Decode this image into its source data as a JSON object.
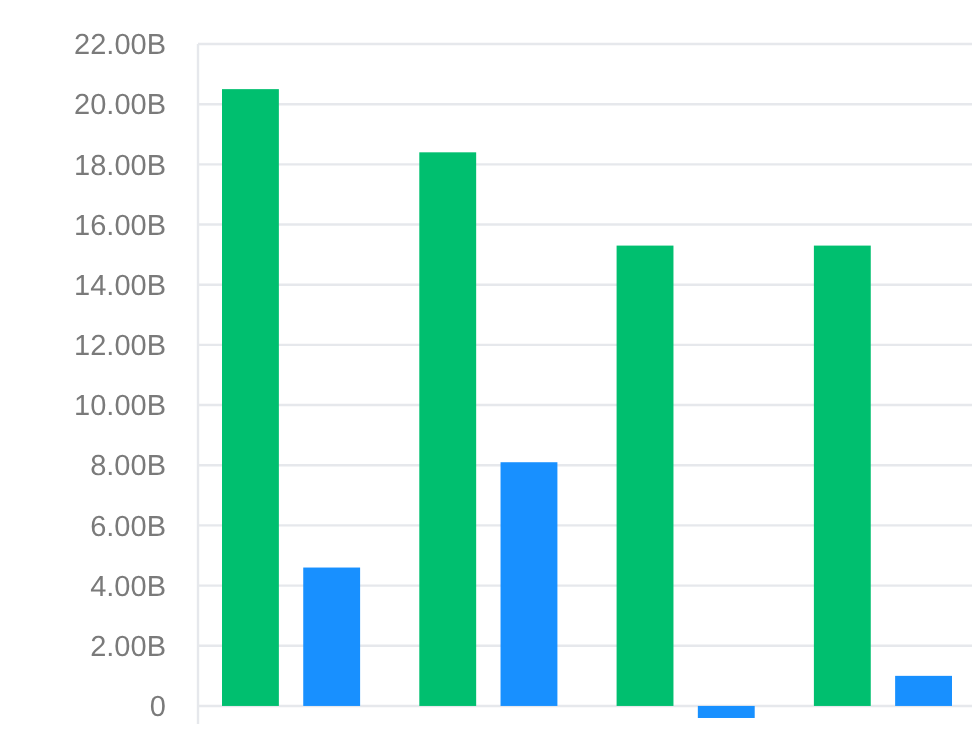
{
  "chart_data": {
    "type": "bar",
    "categories": [
      null,
      null,
      null,
      null
    ],
    "series": [
      {
        "color": "#00bf6f",
        "values": [
          20.5,
          18.4,
          15.3,
          15.3
        ]
      },
      {
        "color": "#1890ff",
        "values": [
          4.6,
          8.1,
          -0.4,
          1.0
        ]
      }
    ],
    "ylim": [
      -0.6,
      22
    ],
    "yticks": [
      {
        "value": 0,
        "label": "0"
      },
      {
        "value": 2,
        "label": "2.00B"
      },
      {
        "value": 4,
        "label": "4.00B"
      },
      {
        "value": 6,
        "label": "6.00B"
      },
      {
        "value": 8,
        "label": "8.00B"
      },
      {
        "value": 10,
        "label": "10.00B"
      },
      {
        "value": 12,
        "label": "12.00B"
      },
      {
        "value": 14,
        "label": "14.00B"
      },
      {
        "value": 16,
        "label": "16.00B"
      },
      {
        "value": 18,
        "label": "18.00B"
      },
      {
        "value": 20,
        "label": "20.00B"
      },
      {
        "value": 22,
        "label": "22.00B"
      }
    ],
    "grid": "y"
  }
}
